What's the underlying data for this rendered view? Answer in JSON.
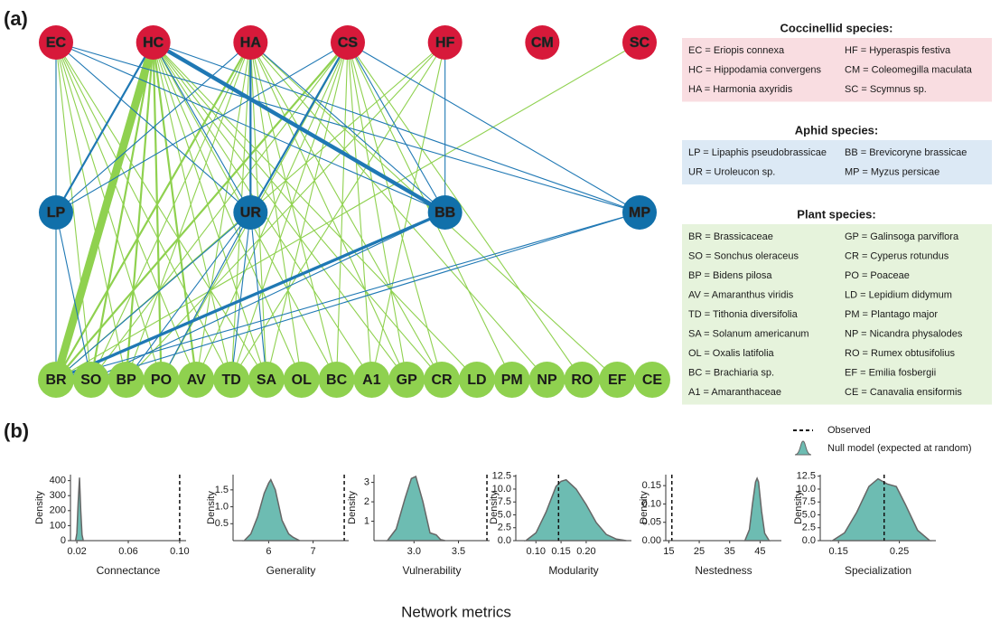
{
  "panel_a": {
    "label": "(a)",
    "node_groups": [
      {
        "color": "#d7193a",
        "label_color": "#ffffff",
        "nodes": [
          "EC",
          "HC",
          "HA",
          "CS",
          "HF",
          "CM",
          "SC"
        ]
      },
      {
        "color": "#1170aa",
        "label_color": "#ffffff",
        "nodes": [
          "LP",
          "UR",
          "BB",
          "MP"
        ]
      },
      {
        "color": "#8fd14f",
        "label_color": "#1a1a1a",
        "nodes": [
          "BR",
          "SO",
          "BP",
          "PO",
          "AV",
          "TD",
          "SA",
          "OL",
          "BC",
          "A1",
          "GP",
          "CR",
          "LD",
          "PM",
          "NP",
          "RO",
          "EF",
          "CE"
        ]
      }
    ],
    "edge_groups": [
      {
        "color": "#8fd14f",
        "edges": [
          [
            "EC",
            "BR",
            1
          ],
          [
            "EC",
            "SO",
            1
          ],
          [
            "EC",
            "BP",
            1
          ],
          [
            "EC",
            "PO",
            1
          ],
          [
            "EC",
            "AV",
            1
          ],
          [
            "EC",
            "TD",
            1
          ],
          [
            "EC",
            "SA",
            1
          ],
          [
            "HC",
            "BR",
            8
          ],
          [
            "HC",
            "SO",
            2
          ],
          [
            "HC",
            "BP",
            2
          ],
          [
            "HC",
            "PO",
            2
          ],
          [
            "HC",
            "AV",
            2
          ],
          [
            "HC",
            "TD",
            1
          ],
          [
            "HC",
            "SA",
            1
          ],
          [
            "HC",
            "OL",
            1
          ],
          [
            "HC",
            "BC",
            1
          ],
          [
            "HC",
            "A1",
            1
          ],
          [
            "HC",
            "GP",
            1
          ],
          [
            "HC",
            "CR",
            1
          ],
          [
            "HC",
            "LD",
            1
          ],
          [
            "HA",
            "BR",
            2
          ],
          [
            "HA",
            "SO",
            1
          ],
          [
            "HA",
            "BP",
            1
          ],
          [
            "HA",
            "AV",
            1
          ],
          [
            "HA",
            "TD",
            1
          ],
          [
            "HA",
            "SA",
            1
          ],
          [
            "HA",
            "OL",
            1
          ],
          [
            "HA",
            "BC",
            1
          ],
          [
            "HA",
            "GP",
            1
          ],
          [
            "HA",
            "CR",
            1
          ],
          [
            "HA",
            "NP",
            1
          ],
          [
            "HA",
            "EF",
            1
          ],
          [
            "CS",
            "BR",
            2
          ],
          [
            "CS",
            "SO",
            1
          ],
          [
            "CS",
            "PO",
            1
          ],
          [
            "CS",
            "AV",
            1
          ],
          [
            "CS",
            "TD",
            1
          ],
          [
            "CS",
            "SA",
            1
          ],
          [
            "CS",
            "BC",
            1
          ],
          [
            "CS",
            "A1",
            1
          ],
          [
            "CS",
            "GP",
            1
          ],
          [
            "CS",
            "CR",
            1
          ],
          [
            "CS",
            "PM",
            1
          ],
          [
            "CS",
            "RO",
            1
          ],
          [
            "HF",
            "BR",
            1
          ],
          [
            "HF",
            "BP",
            1
          ],
          [
            "HF",
            "TD",
            1
          ],
          [
            "HF",
            "A1",
            1
          ],
          [
            "SC",
            "BR",
            1
          ]
        ]
      },
      {
        "color": "#1f78b4",
        "edges": [
          [
            "EC",
            "LP",
            1
          ],
          [
            "EC",
            "UR",
            1
          ],
          [
            "EC",
            "BB",
            1
          ],
          [
            "EC",
            "MP",
            1
          ],
          [
            "HC",
            "LP",
            2
          ],
          [
            "HC",
            "UR",
            1
          ],
          [
            "HC",
            "BB",
            4
          ],
          [
            "HC",
            "MP",
            1
          ],
          [
            "HA",
            "LP",
            1
          ],
          [
            "HA",
            "UR",
            2
          ],
          [
            "HA",
            "BB",
            1
          ],
          [
            "CS",
            "LP",
            1
          ],
          [
            "CS",
            "UR",
            2
          ],
          [
            "CS",
            "BB",
            1
          ],
          [
            "CS",
            "MP",
            1
          ],
          [
            "HF",
            "BB",
            1
          ],
          [
            "LP",
            "BR",
            1
          ],
          [
            "LP",
            "SO",
            1
          ],
          [
            "UR",
            "BR",
            1
          ],
          [
            "UR",
            "BP",
            1
          ],
          [
            "UR",
            "PO",
            1
          ],
          [
            "UR",
            "TD",
            1
          ],
          [
            "UR",
            "SA",
            1
          ],
          [
            "BB",
            "BR",
            3
          ],
          [
            "BB",
            "SO",
            1
          ],
          [
            "MP",
            "BR",
            1
          ],
          [
            "MP",
            "SO",
            1
          ]
        ]
      }
    ],
    "legend": [
      {
        "title": "Coccinellid species:",
        "color": "#f9dde1",
        "entries": [
          "EC = Eriopis connexa",
          "HF = Hyperaspis festiva",
          "HC = Hippodamia convergens",
          "CM = Coleomegilla maculata",
          "HA = Harmonia axyridis",
          "SC = Scymnus sp."
        ]
      },
      {
        "title": "Aphid species:",
        "color": "#dce9f5",
        "entries": [
          "LP = Lipaphis pseudobrassicae",
          "BB = Brevicoryne brassicae",
          "UR = Uroleucon sp.",
          "MP = Myzus persicae"
        ]
      },
      {
        "title": "Plant species:",
        "color": "#e6f3dc",
        "entries": [
          "BR = Brassicaceae",
          "GP = Galinsoga parviflora",
          "SO = Sonchus oleraceus",
          "CR = Cyperus rotundus",
          "BP = Bidens pilosa",
          "PO = Poaceae",
          "AV = Amaranthus viridis",
          "LD = Lepidium didymum",
          "TD = Tithonia diversifolia",
          "PM = Plantago major",
          "SA = Solanum americanum",
          "NP = Nicandra physalodes",
          "OL = Oxalis latifolia",
          "RO = Rumex obtusifolius",
          "BC = Brachiaria sp.",
          "EF = Emilia fosbergii",
          "A1 = Amaranthaceae",
          "CE = Canavalia ensiformis"
        ]
      }
    ]
  },
  "panel_b": {
    "label": "(b)",
    "xlabel": "Network metrics",
    "observed_label": "Observed",
    "null_label": "Null model (expected at random)",
    "fill": "#6dbcb2",
    "stroke": "#666666"
  },
  "chart_data": [
    {
      "type": "area",
      "xlabel": "Connectance",
      "ylabel": "Density",
      "x": [
        0.019,
        0.02,
        0.021,
        0.022,
        0.023,
        0.024,
        0.025
      ],
      "values": [
        0,
        50,
        250,
        420,
        200,
        40,
        0
      ],
      "observed": 0.1,
      "xlim": [
        0.015,
        0.105
      ],
      "xticks": [
        0.02,
        0.06,
        {
          "value": 0.1,
          "label": "0.10"
        }
      ],
      "ylim": [
        0,
        440
      ],
      "yticks": [
        0,
        100,
        200,
        300,
        400
      ]
    },
    {
      "type": "area",
      "xlabel": "Generality",
      "ylabel": "Density",
      "x": [
        5.45,
        5.6,
        5.75,
        5.9,
        6.0,
        6.05,
        6.15,
        6.3,
        6.45,
        6.55,
        6.7
      ],
      "values": [
        0,
        0.2,
        0.7,
        1.4,
        1.7,
        1.8,
        1.5,
        0.6,
        0.2,
        0.1,
        0
      ],
      "observed": 7.7,
      "xlim": [
        5.2,
        7.8
      ],
      "xticks": [
        6,
        7
      ],
      "ylim": [
        0,
        1.95
      ],
      "yticks": [
        0.5,
        {
          "value": 1.0,
          "label": "1.0"
        },
        1.5
      ]
    },
    {
      "type": "area",
      "xlabel": "Vulnerability",
      "ylabel": "Density",
      "x": [
        2.7,
        2.8,
        2.9,
        2.97,
        3.02,
        3.1,
        3.18,
        3.25,
        3.3,
        3.35
      ],
      "values": [
        0,
        0.6,
        2.2,
        3.2,
        3.3,
        2.0,
        0.4,
        0.3,
        0.05,
        0
      ],
      "observed": 3.82,
      "xlim": [
        2.55,
        3.85
      ],
      "xticks": [
        {
          "value": 3.0,
          "label": "3.0"
        },
        3.5
      ],
      "ylim": [
        0,
        3.4
      ],
      "yticks": [
        1,
        2,
        3
      ]
    },
    {
      "type": "area",
      "xlabel": "Modularity",
      "ylabel": "Density",
      "x": [
        0.08,
        0.1,
        0.12,
        0.14,
        0.15,
        0.16,
        0.18,
        0.2,
        0.22,
        0.24,
        0.26,
        0.28
      ],
      "values": [
        0,
        1.5,
        5.5,
        10.5,
        11.5,
        11.8,
        10.0,
        7.0,
        3.5,
        1.2,
        0.3,
        0
      ],
      "observed": 0.145,
      "xlim": [
        0.06,
        0.29
      ],
      "xticks": [
        {
          "value": 0.1,
          "label": "0.10"
        },
        0.15,
        {
          "value": 0.2,
          "label": "0.20"
        }
      ],
      "ylim": [
        0,
        12.8
      ],
      "yticks": [
        {
          "value": 0,
          "label": "0.0"
        },
        2.5,
        {
          "value": 5,
          "label": "5.0"
        },
        7.5,
        {
          "value": 10,
          "label": "10.0"
        },
        12.5
      ]
    },
    {
      "type": "area",
      "xlabel": "Nestedness",
      "ylabel": "Density",
      "x": [
        40,
        41.5,
        42.5,
        43.5,
        44,
        44.5,
        45.5,
        46.5,
        48
      ],
      "values": [
        0,
        0.03,
        0.1,
        0.16,
        0.17,
        0.16,
        0.08,
        0.02,
        0
      ],
      "observed": 16,
      "xlim": [
        14,
        52
      ],
      "xticks": [
        15,
        25,
        35,
        45
      ],
      "ylim": [
        0,
        0.18
      ],
      "yticks": [
        {
          "value": 0,
          "label": "0.00"
        },
        0.05,
        {
          "value": 0.1,
          "label": "0.10"
        },
        0.15
      ]
    },
    {
      "type": "area",
      "xlabel": "Specialization",
      "ylabel": "Density",
      "x": [
        0.14,
        0.16,
        0.18,
        0.2,
        0.215,
        0.23,
        0.245,
        0.26,
        0.28,
        0.3
      ],
      "values": [
        0,
        1.5,
        5.5,
        10.5,
        12.0,
        11.0,
        10.5,
        7.0,
        2.0,
        0
      ],
      "observed": 0.225,
      "xlim": [
        0.12,
        0.31
      ],
      "xticks": [
        0.15,
        0.25
      ],
      "ylim": [
        0,
        12.8
      ],
      "yticks": [
        {
          "value": 0,
          "label": "0.0"
        },
        2.5,
        {
          "value": 5,
          "label": "5.0"
        },
        7.5,
        {
          "value": 10,
          "label": "10.0"
        },
        12.5
      ]
    }
  ]
}
